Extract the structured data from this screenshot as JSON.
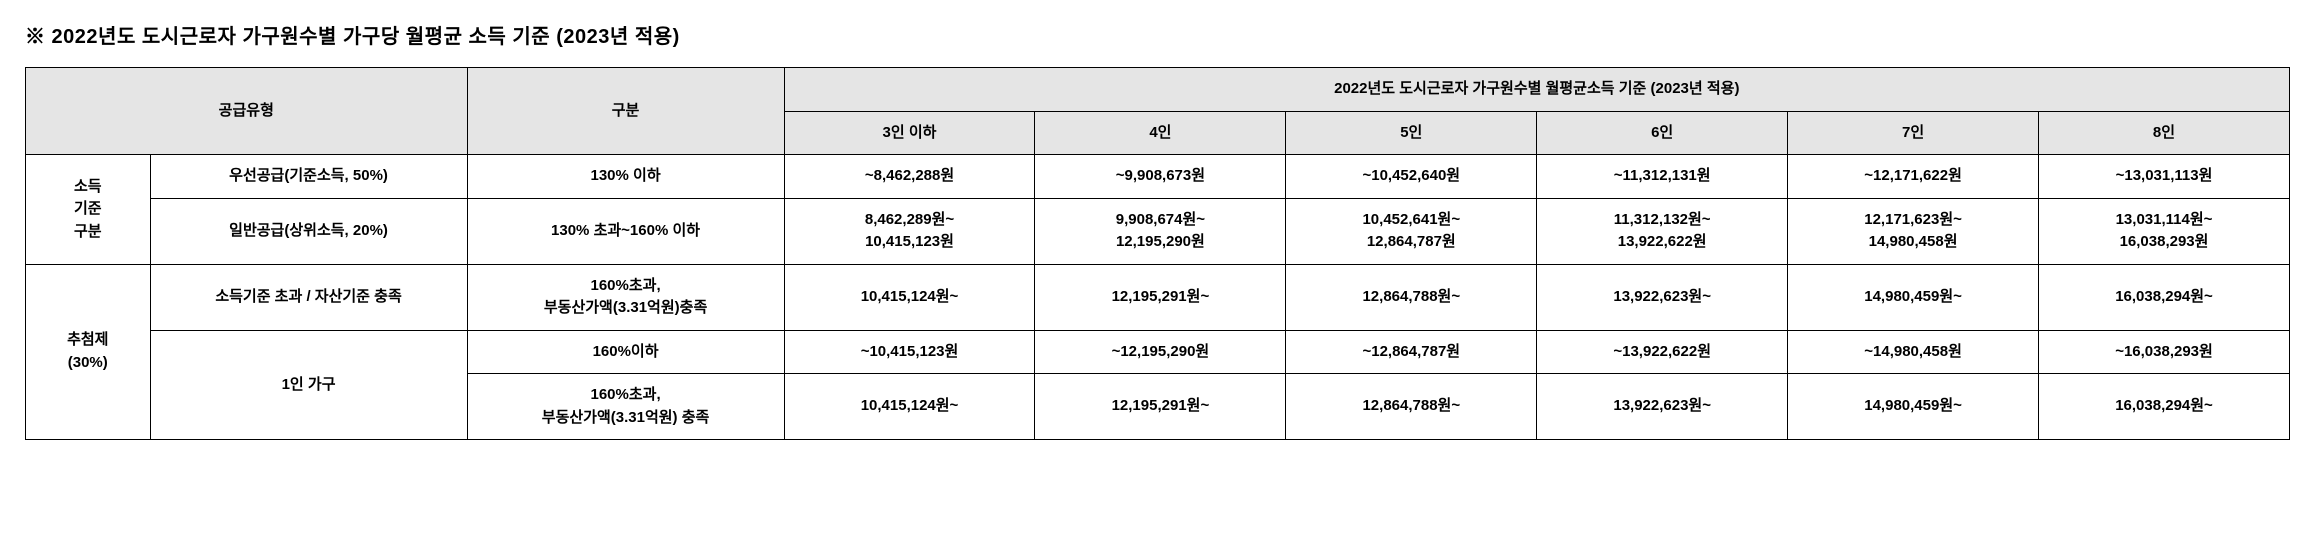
{
  "title": "※ 2022년도 도시근로자 가구원수별 가구당 월평균 소득 기준 (2023년 적용)",
  "header": {
    "supply_type": "공급유형",
    "gubun": "구분",
    "span_title": "2022년도 도시근로자 가구원수별 월평균소득 기준 (2023년 적용)",
    "cols": {
      "p3": "3인 이하",
      "p4": "4인",
      "p5": "5인",
      "p6": "6인",
      "p7": "7인",
      "p8": "8인"
    }
  },
  "rows": {
    "income_cat": "소득\n기준\n구분",
    "r1": {
      "label": "우선공급(기준소득, 50%)",
      "gubun": "130% 이하",
      "p3": "~8,462,288원",
      "p4": "~9,908,673원",
      "p5": "~10,452,640원",
      "p6": "~11,312,131원",
      "p7": "~12,171,622원",
      "p8": "~13,031,113원"
    },
    "r2": {
      "label": "일반공급(상위소득, 20%)",
      "gubun": "130% 초과~160% 이하",
      "p3": "8,462,289원~\n10,415,123원",
      "p4": "9,908,674원~\n12,195,290원",
      "p5": "10,452,641원~\n12,864,787원",
      "p6": "11,312,132원~\n13,922,622원",
      "p7": "12,171,623원~\n14,980,458원",
      "p8": "13,031,114원~\n16,038,293원"
    },
    "lottery_cat": "추첨제\n(30%)",
    "r3": {
      "label": "소득기준 초과 / 자산기준 충족",
      "gubun": "160%초과,\n부동산가액(3.31억원)충족",
      "p3": "10,415,124원~",
      "p4": "12,195,291원~",
      "p5": "12,864,788원~",
      "p6": "13,922,623원~",
      "p7": "14,980,459원~",
      "p8": "16,038,294원~"
    },
    "r4_label": "1인 가구",
    "r4": {
      "gubun": "160%이하",
      "p3": "~10,415,123원",
      "p4": "~12,195,290원",
      "p5": "~12,864,787원",
      "p6": "~13,922,622원",
      "p7": "~14,980,458원",
      "p8": "~16,038,293원"
    },
    "r5": {
      "gubun": "160%초과,\n부동산가액(3.31억원) 충족",
      "p3": "10,415,124원~",
      "p4": "12,195,291원~",
      "p5": "12,864,788원~",
      "p6": "13,922,623원~",
      "p7": "14,980,459원~",
      "p8": "16,038,294원~"
    }
  }
}
